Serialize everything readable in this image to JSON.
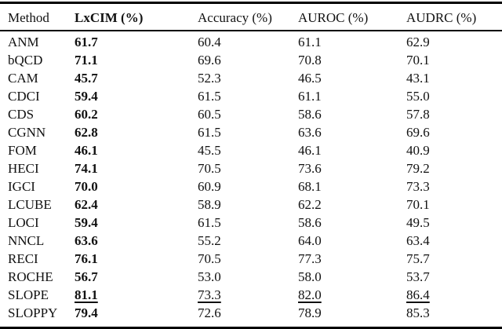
{
  "colors": {
    "background": "#ffffff",
    "text": "#111111",
    "rule": "#000000"
  },
  "table": {
    "columns": [
      {
        "label": "Method",
        "bold": false
      },
      {
        "label": "LxCIM (%)",
        "bold": true
      },
      {
        "label": "Accuracy (%)",
        "bold": false
      },
      {
        "label": "AUROC (%)",
        "bold": false
      },
      {
        "label": "AUDRC (%)",
        "bold": false
      }
    ],
    "rows": [
      {
        "method": "ANM",
        "values": [
          "61.7",
          "60.4",
          "61.1",
          "62.9"
        ],
        "underline": false
      },
      {
        "method": "bQCD",
        "values": [
          "71.1",
          "69.6",
          "70.8",
          "70.1"
        ],
        "underline": false
      },
      {
        "method": "CAM",
        "values": [
          "45.7",
          "52.3",
          "46.5",
          "43.1"
        ],
        "underline": false
      },
      {
        "method": "CDCI",
        "values": [
          "59.4",
          "61.5",
          "61.1",
          "55.0"
        ],
        "underline": false
      },
      {
        "method": "CDS",
        "values": [
          "60.2",
          "60.5",
          "58.6",
          "57.8"
        ],
        "underline": false
      },
      {
        "method": "CGNN",
        "values": [
          "62.8",
          "61.5",
          "63.6",
          "69.6"
        ],
        "underline": false
      },
      {
        "method": "FOM",
        "values": [
          "46.1",
          "45.5",
          "46.1",
          "40.9"
        ],
        "underline": false
      },
      {
        "method": "HECI",
        "values": [
          "74.1",
          "70.5",
          "73.6",
          "79.2"
        ],
        "underline": false
      },
      {
        "method": "IGCI",
        "values": [
          "70.0",
          "60.9",
          "68.1",
          "73.3"
        ],
        "underline": false
      },
      {
        "method": "LCUBE",
        "values": [
          "62.4",
          "58.9",
          "62.2",
          "70.1"
        ],
        "underline": false
      },
      {
        "method": "LOCI",
        "values": [
          "59.4",
          "61.5",
          "58.6",
          "49.5"
        ],
        "underline": false
      },
      {
        "method": "NNCL",
        "values": [
          "63.6",
          "55.2",
          "64.0",
          "63.4"
        ],
        "underline": false
      },
      {
        "method": "RECI",
        "values": [
          "76.1",
          "70.5",
          "77.3",
          "75.7"
        ],
        "underline": false
      },
      {
        "method": "ROCHE",
        "values": [
          "56.7",
          "53.0",
          "58.0",
          "53.7"
        ],
        "underline": false
      },
      {
        "method": "SLOPE",
        "values": [
          "81.1",
          "73.3",
          "82.0",
          "86.4"
        ],
        "underline": true
      },
      {
        "method": "SLOPPY",
        "values": [
          "79.4",
          "72.6",
          "78.9",
          "85.3"
        ],
        "underline": false
      }
    ]
  }
}
